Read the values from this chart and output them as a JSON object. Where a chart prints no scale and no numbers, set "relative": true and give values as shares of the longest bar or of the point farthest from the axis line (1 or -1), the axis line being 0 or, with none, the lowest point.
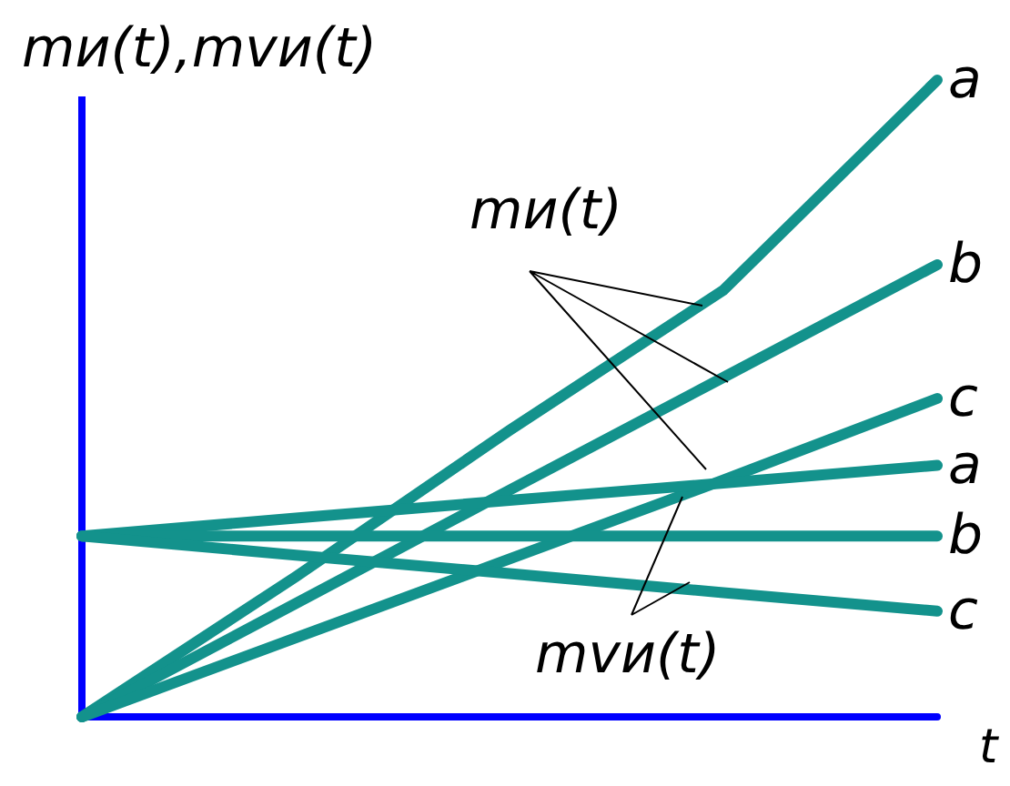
{
  "chart_data": {
    "type": "line",
    "relative": true,
    "ylabel": "mи(t),mvи(t)",
    "xlabel": "t",
    "categories": [
      null,
      null,
      null,
      null,
      null
    ],
    "marker": "none",
    "line_style": "solid",
    "grid": false,
    "legend": false,
    "annotations": [
      "mи(t)",
      "mvи(t)"
    ],
    "series": [
      {
        "name": "a",
        "color": "#13928c",
        "values": [
          0,
          0.22,
          0.45,
          0.67,
          1
        ]
      },
      {
        "name": "b",
        "color": "#13928c",
        "values": [
          0,
          0.178,
          0.356,
          0.533,
          0.71
        ]
      },
      {
        "name": "c",
        "color": "#13928c",
        "values": [
          0,
          0.124,
          0.248,
          0.372,
          0.5
        ]
      },
      {
        "name": "a",
        "color": "#13928c",
        "values": [
          0.284,
          0.312,
          0.34,
          0.367,
          0.395
        ]
      },
      {
        "name": "b",
        "color": "#13928c",
        "values": [
          0.284,
          0.284,
          0.284,
          0.284,
          0.284
        ]
      },
      {
        "name": "c",
        "color": "#13928c",
        "values": [
          0.284,
          0.254,
          0.225,
          0.195,
          0.166
        ]
      }
    ]
  }
}
